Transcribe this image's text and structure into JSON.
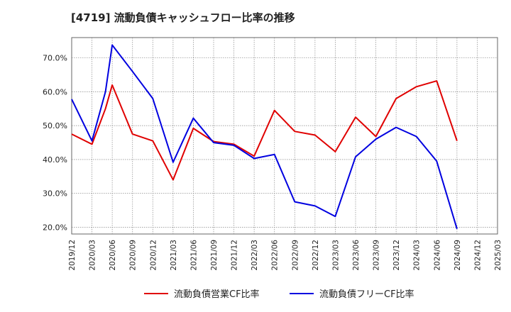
{
  "chart_data": {
    "type": "line",
    "title": "[4719]  流動負債キャッシュフロー比率の推移",
    "xlabel": "",
    "ylabel": "",
    "x_ticks": [
      "2019/12",
      "2020/03",
      "2020/06",
      "2020/09",
      "2020/12",
      "2021/03",
      "2021/06",
      "2021/09",
      "2021/12",
      "2022/03",
      "2022/06",
      "2022/09",
      "2022/12",
      "2023/03",
      "2023/06",
      "2023/09",
      "2023/12",
      "2024/03",
      "2024/06",
      "2024/09",
      "2024/12",
      "2025/03"
    ],
    "y_ticks": [
      "20.0%",
      "30.0%",
      "40.0%",
      "50.0%",
      "60.0%",
      "70.0%"
    ],
    "y_tick_values": [
      20,
      30,
      40,
      50,
      60,
      70
    ],
    "ylim": [
      18,
      76
    ],
    "grid": true,
    "legend_position": "bottom",
    "series": [
      {
        "name": "流動負債営業CF比率",
        "color": "#e00000",
        "x": [
          "2019/12",
          "2020/03",
          "2020/05",
          "2020/06",
          "2020/09",
          "2020/12",
          "2021/03",
          "2021/06",
          "2021/09",
          "2021/12",
          "2022/03",
          "2022/06",
          "2022/09",
          "2022/12",
          "2023/03",
          "2023/06",
          "2023/09",
          "2023/12",
          "2024/03",
          "2024/06",
          "2024/09"
        ],
        "values": [
          47.5,
          44.5,
          55.0,
          62.0,
          47.5,
          45.5,
          34.0,
          49.2,
          45.3,
          44.5,
          41.0,
          54.5,
          48.3,
          47.2,
          42.3,
          52.5,
          46.8,
          58.0,
          61.5,
          63.2,
          45.5
        ]
      },
      {
        "name": "流動負債フリーCF比率",
        "color": "#0000e0",
        "x": [
          "2019/12",
          "2020/03",
          "2020/05",
          "2020/06",
          "2020/09",
          "2020/12",
          "2021/03",
          "2021/06",
          "2021/09",
          "2021/12",
          "2022/03",
          "2022/06",
          "2022/09",
          "2022/12",
          "2023/03",
          "2023/06",
          "2023/09",
          "2023/12",
          "2024/03",
          "2024/06",
          "2024/09"
        ],
        "values": [
          57.8,
          45.5,
          60.0,
          73.8,
          66.0,
          58.0,
          39.2,
          52.2,
          45.0,
          44.2,
          40.3,
          41.5,
          27.5,
          26.3,
          23.2,
          40.8,
          46.0,
          49.5,
          46.8,
          39.5,
          19.5
        ]
      }
    ]
  }
}
